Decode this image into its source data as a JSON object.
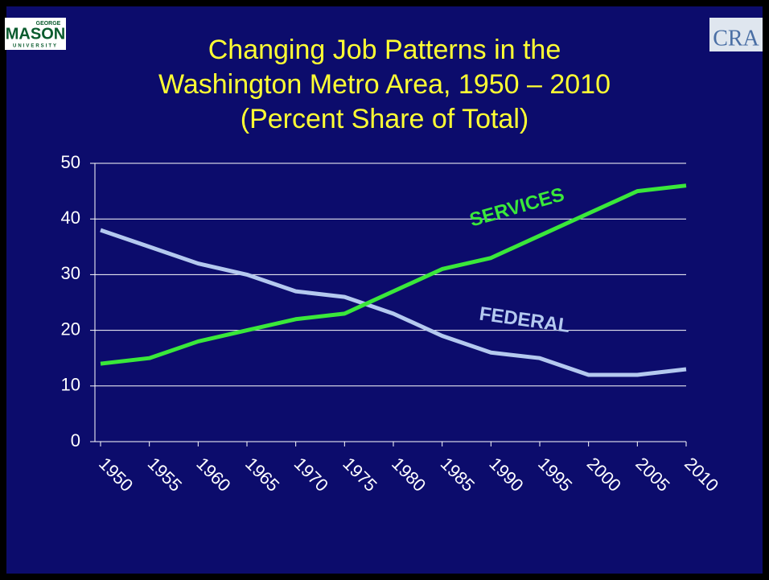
{
  "chart_data": {
    "type": "line",
    "title": [
      "Changing Job Patterns in the",
      "Washington Metro Area, 1950 – 2010"
    ],
    "subtitle": "(Percent Share of Total)",
    "x": [
      1950,
      1955,
      1960,
      1965,
      1970,
      1975,
      1980,
      1985,
      1990,
      1995,
      2000,
      2005,
      2010
    ],
    "xlim": [
      1950,
      2010
    ],
    "xticks": [
      1950,
      1955,
      1960,
      1965,
      1970,
      1975,
      1980,
      1985,
      1990,
      1995,
      2000,
      2005,
      2010
    ],
    "ylim": [
      0,
      50
    ],
    "yticks": [
      0,
      10,
      20,
      30,
      40,
      50
    ],
    "grid": true,
    "series": [
      {
        "name": "FEDERAL",
        "color": "#b4c9ef",
        "values": [
          38,
          35,
          32,
          30,
          27,
          26,
          23,
          19,
          16,
          15,
          12,
          12,
          13
        ]
      },
      {
        "name": "SERVICES",
        "color": "#3ae83a",
        "values": [
          14,
          15,
          18,
          20,
          22,
          23,
          27,
          31,
          33,
          37,
          41,
          45,
          46
        ]
      }
    ]
  },
  "logos": {
    "left": [
      "GEORGE",
      "MASON",
      "UNIVERSITY"
    ],
    "right": "CRA"
  }
}
